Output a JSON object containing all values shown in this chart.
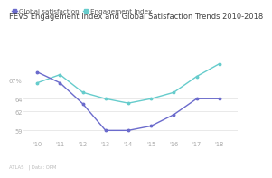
{
  "title": "FEVS Engagement Index and Global Satisfaction Trends 2010-2018",
  "years": [
    2010,
    2011,
    2012,
    2013,
    2014,
    2015,
    2016,
    2017,
    2018
  ],
  "year_labels": [
    "'10",
    "'11",
    "'12",
    "'13",
    "'14",
    "'15",
    "'16",
    "'17",
    "'18"
  ],
  "global_satisfaction": [
    68.2,
    66.5,
    63.2,
    59.0,
    59.0,
    59.7,
    61.5,
    64.0,
    64.0
  ],
  "engagement_index": [
    66.5,
    67.8,
    65.0,
    64.0,
    63.3,
    64.0,
    65.0,
    67.5,
    69.5
  ],
  "global_color": "#6b6bcc",
  "engagement_color": "#66cccc",
  "ytick_values": [
    59,
    62,
    64,
    67
  ],
  "ytick_labels": [
    "59",
    "62",
    "64",
    "67%"
  ],
  "ylim": [
    57.5,
    71.5
  ],
  "xlim": [
    2009.4,
    2018.8
  ],
  "background_color": "#ffffff",
  "legend_global": "Global satisfaction",
  "legend_engagement": "Engagement Index",
  "footer": "ATLAS   | Data: OPM",
  "title_fontsize": 6.0,
  "legend_fontsize": 5.2,
  "tick_fontsize": 4.8,
  "footer_fontsize": 3.8,
  "title_color": "#444444",
  "tick_color": "#aaaaaa",
  "grid_color": "#e0e0e0",
  "legend_text_color": "#555555",
  "footer_color": "#bbbbbb"
}
